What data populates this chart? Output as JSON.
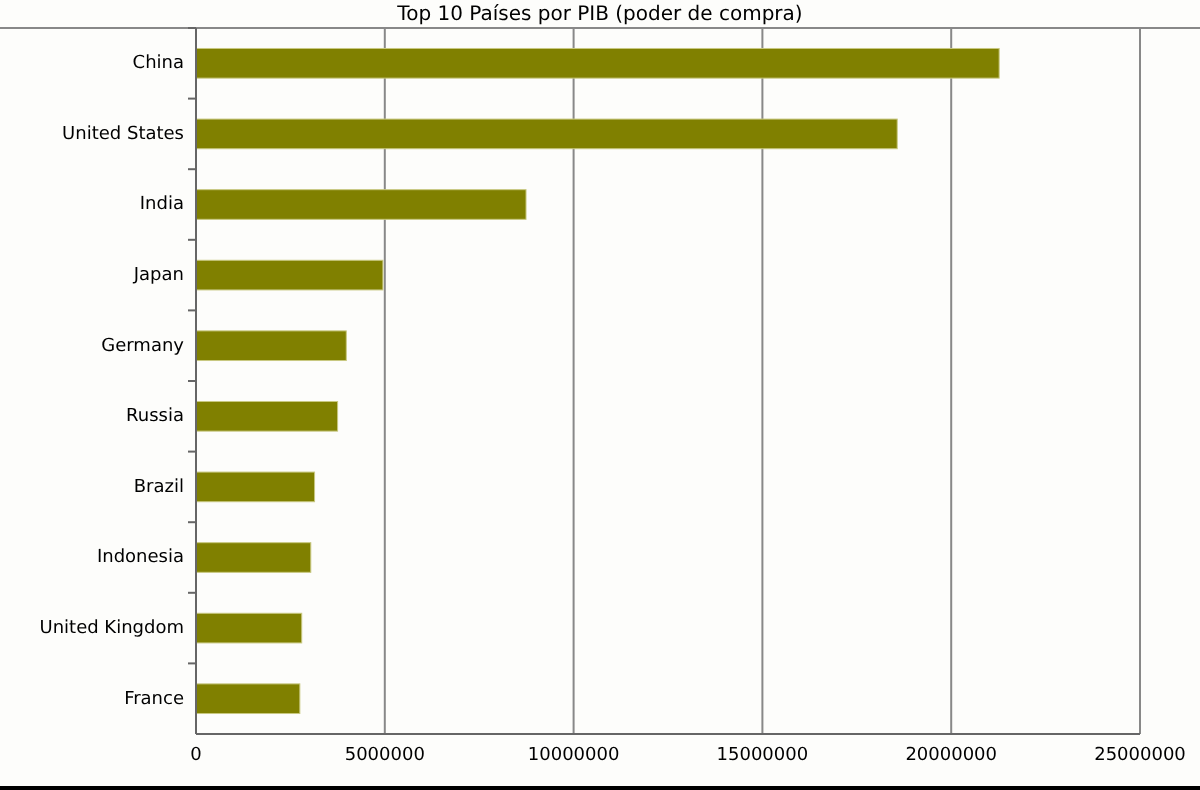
{
  "chart_data": {
    "type": "bar",
    "orientation": "horizontal",
    "title": "Top 10 Países por PIB (poder de compra)",
    "categories": [
      "China",
      "United States",
      "India",
      "Japan",
      "Germany",
      "Russia",
      "Brazil",
      "Indonesia",
      "United Kingdom",
      "France"
    ],
    "values": [
      21270000,
      18570000,
      8740000,
      4950000,
      3980000,
      3750000,
      3140000,
      3040000,
      2800000,
      2750000
    ],
    "color": "#808000",
    "xlim": [
      0,
      25000000
    ],
    "xticks": [
      0,
      5000000,
      10000000,
      15000000,
      20000000,
      25000000
    ],
    "grid": "x"
  }
}
